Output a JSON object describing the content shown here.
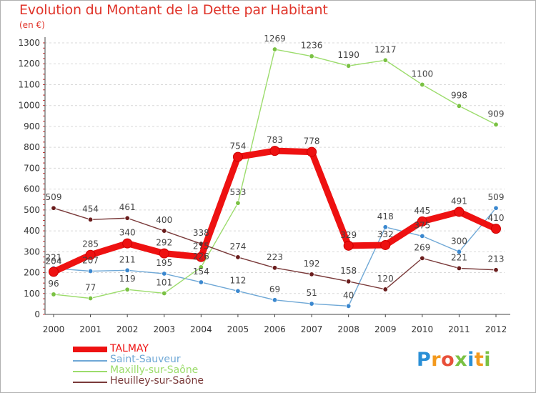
{
  "title": "Evolution du Montant de la Dette par Habitant",
  "subtitle": "(en €)",
  "brand": {
    "letters": [
      "P",
      "r",
      "o",
      "x",
      "i",
      "t",
      "i"
    ],
    "colors": [
      "#2a8fd6",
      "#f39a1e",
      "#e8503a",
      "#7ac143",
      "#2a8fd6",
      "#f39a1e",
      "#7ac143"
    ]
  },
  "chart_data": {
    "type": "line",
    "title": "Evolution du Montant de la Dette par Habitant",
    "ylabel": "(en €)",
    "xlabel": "",
    "ylim": [
      0,
      1300
    ],
    "yticks": [
      0,
      100,
      200,
      300,
      400,
      500,
      600,
      700,
      800,
      900,
      1000,
      1100,
      1200,
      1300
    ],
    "x": [
      "2000",
      "2001",
      "2002",
      "2003",
      "2004",
      "2005",
      "2006",
      "2007",
      "2008",
      "2009",
      "2010",
      "2011",
      "2012"
    ],
    "grid": true,
    "legend_position": "bottom-left",
    "series": [
      {
        "name": "TALMAY",
        "color": "#ee1111",
        "point_color": "#ee1111",
        "highlight": true,
        "values": [
          204,
          285,
          340,
          292,
          275,
          754,
          783,
          778,
          329,
          332,
          445,
          491,
          410
        ],
        "labels": [
          "204",
          "285",
          "340",
          "292",
          "275",
          "754",
          "783",
          "778",
          "329",
          "332",
          "445",
          "491",
          "410"
        ]
      },
      {
        "name": "Saint-Sauveur",
        "color": "#6fa8d6",
        "point_color": "#3b88cf",
        "highlight": false,
        "values": [
          221,
          207,
          211,
          195,
          154,
          112,
          69,
          51,
          40,
          418,
          375,
          300,
          509
        ],
        "labels": [
          "221",
          "207",
          "211",
          "195",
          "154",
          "112",
          "69",
          "51",
          "40",
          "418",
          "375",
          "300",
          "509"
        ]
      },
      {
        "name": "Maxilly-sur-Saône",
        "color": "#9cdc6c",
        "point_color": "#7ac143",
        "highlight": false,
        "values": [
          96,
          77,
          119,
          101,
          226,
          533,
          1269,
          1236,
          1190,
          1217,
          1100,
          998,
          909
        ],
        "labels": [
          "96",
          "77",
          "119",
          "101",
          "226",
          "533",
          "1269",
          "1236",
          "1190",
          "1217",
          "1100",
          "998",
          "909"
        ]
      },
      {
        "name": "Heuilley-sur-Saône",
        "color": "#7a3a3a",
        "point_color": "#6a1c1c",
        "highlight": false,
        "values": [
          509,
          454,
          461,
          400,
          338,
          274,
          223,
          192,
          158,
          120,
          269,
          221,
          213
        ],
        "labels": [
          "509",
          "454",
          "461",
          "400",
          "338",
          "274",
          "223",
          "192",
          "158",
          "120",
          "269",
          "221",
          "213"
        ]
      }
    ]
  }
}
